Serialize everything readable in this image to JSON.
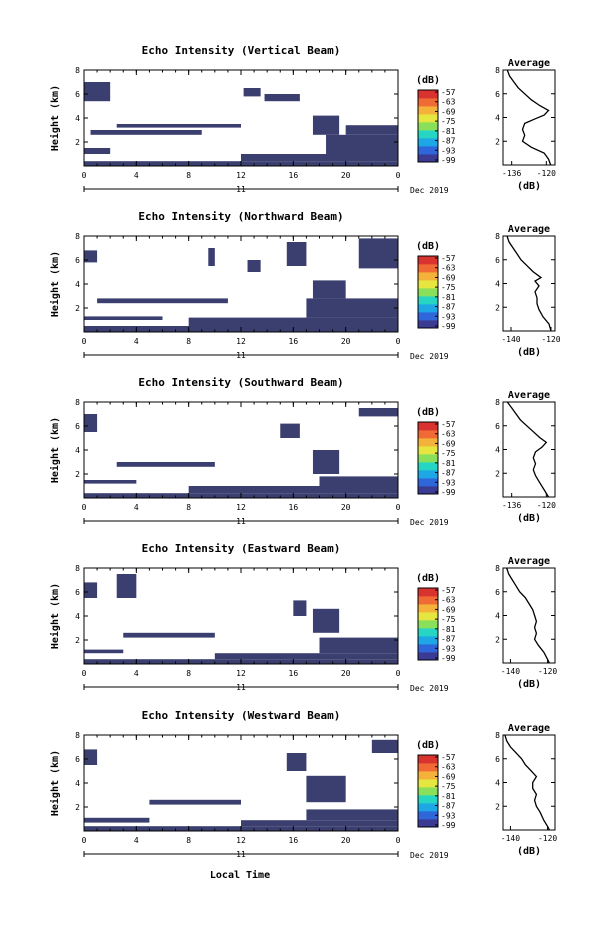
{
  "figure": {
    "xlabel": "Local Time",
    "date_label": "Dec 2019",
    "day_label": "11",
    "avg_title": "Average",
    "avg_unit": "(dB)",
    "cbar_unit": "(dB)",
    "colors": {
      "echo": "#3b3f70",
      "colorscale": [
        "#3b3b93",
        "#2f66d9",
        "#1da7e6",
        "#27d6c2",
        "#8ae05b",
        "#e6e640",
        "#f4b23a",
        "#ef6a35",
        "#d8332f"
      ]
    }
  },
  "chart_data": [
    {
      "type": "heatmap",
      "title": "Echo Intensity (Vertical Beam)",
      "ylabel": "Height (km)",
      "x_ticks": [
        "0",
        "4",
        "8",
        "12",
        "16",
        "20",
        "0"
      ],
      "y_ticks": [
        "8",
        "6",
        "4",
        "2"
      ],
      "xlim": [
        0,
        24
      ],
      "ylim": [
        0,
        8
      ],
      "colorbar": {
        "unit": "(dB)",
        "ticks": [
          "-57",
          "-63",
          "-69",
          "-75",
          "-81",
          "-87",
          "-93",
          "-99"
        ]
      },
      "echo_regions": [
        {
          "x": [
            0,
            24
          ],
          "y": [
            0,
            0.4
          ]
        },
        {
          "x": [
            12,
            24
          ],
          "y": [
            0.4,
            1.0
          ]
        },
        {
          "x": [
            18.5,
            24
          ],
          "y": [
            1.0,
            2.6
          ]
        },
        {
          "x": [
            17.5,
            19.5
          ],
          "y": [
            2.6,
            4.2
          ]
        },
        {
          "x": [
            20,
            24
          ],
          "y": [
            2.6,
            3.4
          ]
        },
        {
          "x": [
            0,
            2
          ],
          "y": [
            5.4,
            7.0
          ]
        },
        {
          "x": [
            0.5,
            9
          ],
          "y": [
            2.6,
            3.0
          ]
        },
        {
          "x": [
            2.5,
            12
          ],
          "y": [
            3.2,
            3.5
          ]
        },
        {
          "x": [
            12.2,
            13.5
          ],
          "y": [
            5.8,
            6.5
          ]
        },
        {
          "x": [
            13.8,
            16.5
          ],
          "y": [
            5.4,
            6.0
          ]
        },
        {
          "x": [
            0,
            2
          ],
          "y": [
            1.0,
            1.5
          ]
        }
      ],
      "average": {
        "title": "Average",
        "xlabel": "(dB)",
        "x_ticks": [
          "-136",
          "-120"
        ],
        "xlim": [
          -140,
          -116
        ],
        "y_ticks": [
          "8",
          "6",
          "4",
          "2"
        ],
        "ylim": [
          0,
          8
        ],
        "profile": [
          [
            -138,
            8.0
          ],
          [
            -137,
            7.5
          ],
          [
            -135,
            7.0
          ],
          [
            -133,
            6.5
          ],
          [
            -130,
            6.0
          ],
          [
            -127,
            5.5
          ],
          [
            -123,
            5.0
          ],
          [
            -119,
            4.6
          ],
          [
            -121,
            4.2
          ],
          [
            -125,
            3.9
          ],
          [
            -130,
            3.5
          ],
          [
            -131,
            3.0
          ],
          [
            -130,
            2.5
          ],
          [
            -131,
            2.0
          ],
          [
            -127,
            1.5
          ],
          [
            -121,
            1.0
          ],
          [
            -119,
            0.5
          ],
          [
            -118,
            0.0
          ]
        ]
      }
    },
    {
      "type": "heatmap",
      "title": "Echo Intensity (Northward Beam)",
      "ylabel": "Height (km)",
      "x_ticks": [
        "0",
        "4",
        "8",
        "12",
        "16",
        "20",
        "0"
      ],
      "y_ticks": [
        "8",
        "6",
        "4",
        "2"
      ],
      "xlim": [
        0,
        24
      ],
      "ylim": [
        0,
        8
      ],
      "colorbar": {
        "unit": "(dB)",
        "ticks": [
          "-57",
          "-63",
          "-69",
          "-75",
          "-81",
          "-87",
          "-93",
          "-99"
        ]
      },
      "echo_regions": [
        {
          "x": [
            0,
            24
          ],
          "y": [
            0,
            0.5
          ]
        },
        {
          "x": [
            8,
            24
          ],
          "y": [
            0.5,
            1.2
          ]
        },
        {
          "x": [
            17,
            24
          ],
          "y": [
            1.2,
            2.8
          ]
        },
        {
          "x": [
            17.5,
            20
          ],
          "y": [
            2.8,
            4.3
          ]
        },
        {
          "x": [
            0,
            1
          ],
          "y": [
            5.8,
            6.8
          ]
        },
        {
          "x": [
            1,
            11
          ],
          "y": [
            2.4,
            2.8
          ]
        },
        {
          "x": [
            0,
            6
          ],
          "y": [
            1.0,
            1.3
          ]
        },
        {
          "x": [
            15.5,
            17
          ],
          "y": [
            5.5,
            7.5
          ]
        },
        {
          "x": [
            21,
            24
          ],
          "y": [
            5.3,
            7.8
          ]
        },
        {
          "x": [
            12.5,
            13.5
          ],
          "y": [
            5.0,
            6.0
          ]
        },
        {
          "x": [
            9.5,
            10
          ],
          "y": [
            5.5,
            7.0
          ]
        }
      ],
      "average": {
        "title": "Average",
        "xlabel": "(dB)",
        "x_ticks": [
          "-140",
          "-120"
        ],
        "xlim": [
          -144,
          -118
        ],
        "y_ticks": [
          "8",
          "6",
          "4",
          "2"
        ],
        "ylim": [
          0,
          8
        ],
        "profile": [
          [
            -142,
            8.0
          ],
          [
            -141,
            7.5
          ],
          [
            -139,
            7.0
          ],
          [
            -137,
            6.5
          ],
          [
            -135,
            6.0
          ],
          [
            -132,
            5.5
          ],
          [
            -129,
            5.0
          ],
          [
            -125,
            4.5
          ],
          [
            -128,
            4.2
          ],
          [
            -126,
            3.8
          ],
          [
            -128,
            3.3
          ],
          [
            -127,
            2.8
          ],
          [
            -127,
            2.3
          ],
          [
            -126,
            1.8
          ],
          [
            -124,
            1.2
          ],
          [
            -121,
            0.6
          ],
          [
            -120,
            0.0
          ]
        ]
      }
    },
    {
      "type": "heatmap",
      "title": "Echo Intensity (Southward Beam)",
      "ylabel": "Height (km)",
      "x_ticks": [
        "0",
        "4",
        "8",
        "12",
        "16",
        "20",
        "0"
      ],
      "y_ticks": [
        "8",
        "6",
        "4",
        "2"
      ],
      "xlim": [
        0,
        24
      ],
      "ylim": [
        0,
        8
      ],
      "colorbar": {
        "unit": "(dB)",
        "ticks": [
          "-57",
          "-63",
          "-69",
          "-75",
          "-81",
          "-87",
          "-93",
          "-99"
        ]
      },
      "echo_regions": [
        {
          "x": [
            0,
            24
          ],
          "y": [
            0,
            0.4
          ]
        },
        {
          "x": [
            8,
            24
          ],
          "y": [
            0.4,
            1.0
          ]
        },
        {
          "x": [
            18,
            24
          ],
          "y": [
            1.0,
            1.8
          ]
        },
        {
          "x": [
            17.5,
            19.5
          ],
          "y": [
            2.0,
            4.0
          ]
        },
        {
          "x": [
            0,
            1
          ],
          "y": [
            5.5,
            7.0
          ]
        },
        {
          "x": [
            2.5,
            10
          ],
          "y": [
            2.6,
            3.0
          ]
        },
        {
          "x": [
            0,
            4
          ],
          "y": [
            1.2,
            1.5
          ]
        },
        {
          "x": [
            15,
            16.5
          ],
          "y": [
            5.0,
            6.2
          ]
        },
        {
          "x": [
            21,
            24
          ],
          "y": [
            6.8,
            7.5
          ]
        }
      ],
      "average": {
        "title": "Average",
        "xlabel": "(dB)",
        "x_ticks": [
          "-136",
          "-120"
        ],
        "xlim": [
          -140,
          -116
        ],
        "y_ticks": [
          "8",
          "6",
          "4",
          "2"
        ],
        "ylim": [
          0,
          8
        ],
        "profile": [
          [
            -138,
            8.0
          ],
          [
            -136,
            7.5
          ],
          [
            -134,
            7.0
          ],
          [
            -132,
            6.5
          ],
          [
            -129,
            6.0
          ],
          [
            -126,
            5.5
          ],
          [
            -123,
            5.0
          ],
          [
            -120,
            4.6
          ],
          [
            -122,
            4.2
          ],
          [
            -125,
            3.8
          ],
          [
            -126,
            3.3
          ],
          [
            -125,
            2.8
          ],
          [
            -126,
            2.3
          ],
          [
            -125,
            1.8
          ],
          [
            -123,
            1.2
          ],
          [
            -121,
            0.6
          ],
          [
            -119,
            0.0
          ]
        ]
      }
    },
    {
      "type": "heatmap",
      "title": "Echo Intensity (Eastward Beam)",
      "ylabel": "Height (km)",
      "x_ticks": [
        "0",
        "4",
        "8",
        "12",
        "16",
        "20",
        "0"
      ],
      "y_ticks": [
        "8",
        "6",
        "4",
        "2"
      ],
      "xlim": [
        0,
        24
      ],
      "ylim": [
        0,
        8
      ],
      "colorbar": {
        "unit": "(dB)",
        "ticks": [
          "-57",
          "-63",
          "-69",
          "-75",
          "-81",
          "-87",
          "-93",
          "-99"
        ]
      },
      "echo_regions": [
        {
          "x": [
            0,
            24
          ],
          "y": [
            0,
            0.4
          ]
        },
        {
          "x": [
            10,
            24
          ],
          "y": [
            0.4,
            0.9
          ]
        },
        {
          "x": [
            18,
            24
          ],
          "y": [
            0.9,
            2.2
          ]
        },
        {
          "x": [
            17.5,
            19.5
          ],
          "y": [
            2.6,
            4.6
          ]
        },
        {
          "x": [
            0,
            1
          ],
          "y": [
            5.5,
            6.8
          ]
        },
        {
          "x": [
            3,
            10
          ],
          "y": [
            2.2,
            2.6
          ]
        },
        {
          "x": [
            0,
            3
          ],
          "y": [
            0.9,
            1.2
          ]
        },
        {
          "x": [
            2.5,
            4
          ],
          "y": [
            5.5,
            7.5
          ]
        },
        {
          "x": [
            16,
            17
          ],
          "y": [
            4.0,
            5.3
          ]
        }
      ],
      "average": {
        "title": "Average",
        "xlabel": "(dB)",
        "x_ticks": [
          "-140",
          "-120"
        ],
        "xlim": [
          -144,
          -116
        ],
        "y_ticks": [
          "8",
          "6",
          "4",
          "2"
        ],
        "ylim": [
          0,
          8
        ],
        "profile": [
          [
            -142,
            8.0
          ],
          [
            -141,
            7.5
          ],
          [
            -139,
            7.0
          ],
          [
            -137,
            6.5
          ],
          [
            -135,
            6.0
          ],
          [
            -132,
            5.5
          ],
          [
            -130,
            5.0
          ],
          [
            -128,
            4.5
          ],
          [
            -127,
            4.0
          ],
          [
            -126,
            3.5
          ],
          [
            -127,
            3.0
          ],
          [
            -126,
            2.5
          ],
          [
            -127,
            2.0
          ],
          [
            -125,
            1.5
          ],
          [
            -122,
            0.9
          ],
          [
            -120,
            0.3
          ],
          [
            -119,
            0.0
          ]
        ]
      }
    },
    {
      "type": "heatmap",
      "title": "Echo Intensity (Westward Beam)",
      "ylabel": "Height (km)",
      "x_ticks": [
        "0",
        "4",
        "8",
        "12",
        "16",
        "20",
        "0"
      ],
      "y_ticks": [
        "8",
        "6",
        "4",
        "2"
      ],
      "xlim": [
        0,
        24
      ],
      "ylim": [
        0,
        8
      ],
      "colorbar": {
        "unit": "(dB)",
        "ticks": [
          "-57",
          "-63",
          "-69",
          "-75",
          "-81",
          "-87",
          "-93",
          "-99"
        ]
      },
      "echo_regions": [
        {
          "x": [
            0,
            24
          ],
          "y": [
            0,
            0.4
          ]
        },
        {
          "x": [
            12,
            24
          ],
          "y": [
            0.4,
            0.9
          ]
        },
        {
          "x": [
            17,
            24
          ],
          "y": [
            0.9,
            1.8
          ]
        },
        {
          "x": [
            17,
            20
          ],
          "y": [
            2.4,
            4.6
          ]
        },
        {
          "x": [
            0,
            1
          ],
          "y": [
            5.5,
            6.8
          ]
        },
        {
          "x": [
            5,
            12
          ],
          "y": [
            2.2,
            2.6
          ]
        },
        {
          "x": [
            0,
            5
          ],
          "y": [
            0.7,
            1.1
          ]
        },
        {
          "x": [
            15.5,
            17
          ],
          "y": [
            5.0,
            6.5
          ]
        },
        {
          "x": [
            22,
            24
          ],
          "y": [
            6.5,
            7.6
          ]
        }
      ],
      "average": {
        "title": "Average",
        "xlabel": "(dB)",
        "x_ticks": [
          "-140",
          "-120"
        ],
        "xlim": [
          -144,
          -116
        ],
        "y_ticks": [
          "8",
          "6",
          "4",
          "2"
        ],
        "ylim": [
          0,
          8
        ],
        "profile": [
          [
            -143,
            8.0
          ],
          [
            -142,
            7.5
          ],
          [
            -140,
            7.0
          ],
          [
            -137,
            6.5
          ],
          [
            -134,
            6.0
          ],
          [
            -132,
            5.5
          ],
          [
            -129,
            5.0
          ],
          [
            -126,
            4.5
          ],
          [
            -128,
            4.0
          ],
          [
            -128,
            3.5
          ],
          [
            -126,
            3.0
          ],
          [
            -127,
            2.5
          ],
          [
            -126,
            2.0
          ],
          [
            -124,
            1.5
          ],
          [
            -122,
            0.8
          ],
          [
            -120,
            0.3
          ],
          [
            -119,
            0.0
          ]
        ]
      }
    }
  ]
}
